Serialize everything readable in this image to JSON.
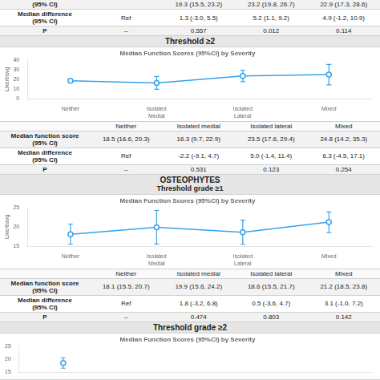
{
  "chart_data": [
    {
      "type": "line",
      "title": "Median Function Scores (95%CI) by Severity",
      "categories": [
        "Neither",
        "Isolated\nMedial",
        "Isolated\nLateral",
        "Mixed"
      ],
      "values": [
        18.5,
        16.3,
        23.5,
        24.8
      ],
      "ci_low": [
        16.6,
        9.7,
        17.6,
        14.2
      ],
      "ci_high": [
        20.3,
        22.9,
        29.4,
        35.3
      ],
      "y_label": "Likert/avg",
      "ylim": [
        0,
        40
      ],
      "yticks": [
        0,
        10,
        20,
        30,
        40
      ],
      "grid": false,
      "marker": "circle",
      "line_style": "solid"
    },
    {
      "type": "line",
      "title": "Median Function Scores (95%CI) by Severity",
      "categories": [
        "Neither",
        "Isolated\nMedial",
        "Isolated\nLateral",
        "Mixed"
      ],
      "values": [
        18.1,
        19.9,
        18.6,
        21.2
      ],
      "ci_low": [
        15.5,
        15.6,
        15.5,
        18.5
      ],
      "ci_high": [
        20.7,
        24.2,
        21.7,
        23.8
      ],
      "y_label": "Likert/avg",
      "ylim": [
        15,
        25
      ],
      "yticks": [
        15,
        20,
        25
      ],
      "grid": false,
      "marker": "circle",
      "line_style": "solid"
    },
    {
      "type": "line",
      "title": "Median Function Scores (95%CI) by Severity",
      "categories": [
        null,
        null,
        null,
        null
      ],
      "values": [
        18.5,
        null,
        null,
        null
      ],
      "ci_low": [
        16.5,
        null,
        null,
        null
      ],
      "ci_high": [
        20.5,
        null,
        null,
        null
      ],
      "ylim": [
        15,
        25
      ],
      "yticks": [
        15,
        20,
        25
      ],
      "grid": false,
      "tick_labels": "y",
      "marker": "circle",
      "line_style": "none"
    }
  ],
  "table": {
    "col_headers": [
      "Neither",
      "Isolated medial",
      "Isolated lateral",
      "Mixed"
    ],
    "top_rows": [
      {
        "label": "(95% CI)",
        "values": [
          null,
          "19.3 (15.5, 23.2)",
          "23.2 (19.8, 26.7)",
          "22.9 (17.3, 28.6)"
        ]
      },
      {
        "label": "Median difference\n(95% CI)",
        "values": [
          "Ref",
          "1.3 (-3.0, 5.5)",
          "5.2 (1.1, 9.2)",
          "4.9 (-1.2, 10.9)"
        ]
      },
      {
        "label": "P",
        "values": [
          "--",
          "0.557",
          "0.012",
          "0.114"
        ]
      }
    ],
    "sections": [
      {
        "header": [
          "Threshold ≥2"
        ],
        "rows": [
          {
            "label": "Median function score\n(95% CI)",
            "values": [
              "18.5 (16.6, 20.3)",
              "16.3 (9.7, 22.9)",
              "23.5 (17.6, 29.4)",
              "24.8 (14.2, 35.3)"
            ]
          },
          {
            "label": "Median difference\n(95% CI)",
            "values": [
              "Ref",
              "-2.2 (-9.1, 4.7)",
              "5.0 (-1.4, 11.4)",
              "6.3 (-4.5, 17.1)"
            ]
          },
          {
            "label": "P",
            "values": [
              "--",
              "0.531",
              "0.123",
              "0.254"
            ]
          }
        ]
      },
      {
        "header": [
          "OSTEOPHYTES",
          "Threshold grade ≥1"
        ],
        "rows": [
          {
            "label": "Median function score\n(95% CI)",
            "values": [
              "18.1 (15.5, 20.7)",
              "19.9 (15.6, 24.2)",
              "18.6 (15.5, 21.7)",
              "21.2 (18.5, 23.8)"
            ]
          },
          {
            "label": "Median difference\n(95% CI)",
            "values": [
              "Ref",
              "1.8 (-3.2, 6.8)",
              "0.5 (-3.6, 4.7)",
              "3.1 (-1.0, 7.2)"
            ]
          },
          {
            "label": "P",
            "values": [
              "--",
              "0.474",
              "0.803",
              "0.142"
            ]
          }
        ]
      },
      {
        "header": [
          "Threshold grade ≥2"
        ],
        "rows": []
      }
    ]
  }
}
